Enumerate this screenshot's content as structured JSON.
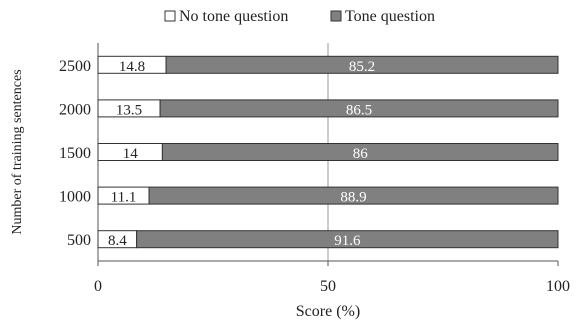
{
  "chart_data": {
    "type": "bar",
    "orientation": "horizontal",
    "stacked": true,
    "categories": [
      "500",
      "1000",
      "1500",
      "2000",
      "2500"
    ],
    "series": [
      {
        "name": "No tone question",
        "values": [
          8.4,
          11.1,
          14,
          13.5,
          14.8
        ],
        "color": "#ffffff"
      },
      {
        "name": "Tone question",
        "values": [
          91.6,
          88.9,
          86,
          86.5,
          85.2
        ],
        "color": "#808080"
      }
    ],
    "xlabel": "Score (%)",
    "ylabel": "Number of training sentences",
    "xlim": [
      0,
      100
    ],
    "xticks": [
      "0",
      "50",
      "100"
    ],
    "reference_line": 50,
    "legend_position": "top",
    "grid": false
  }
}
